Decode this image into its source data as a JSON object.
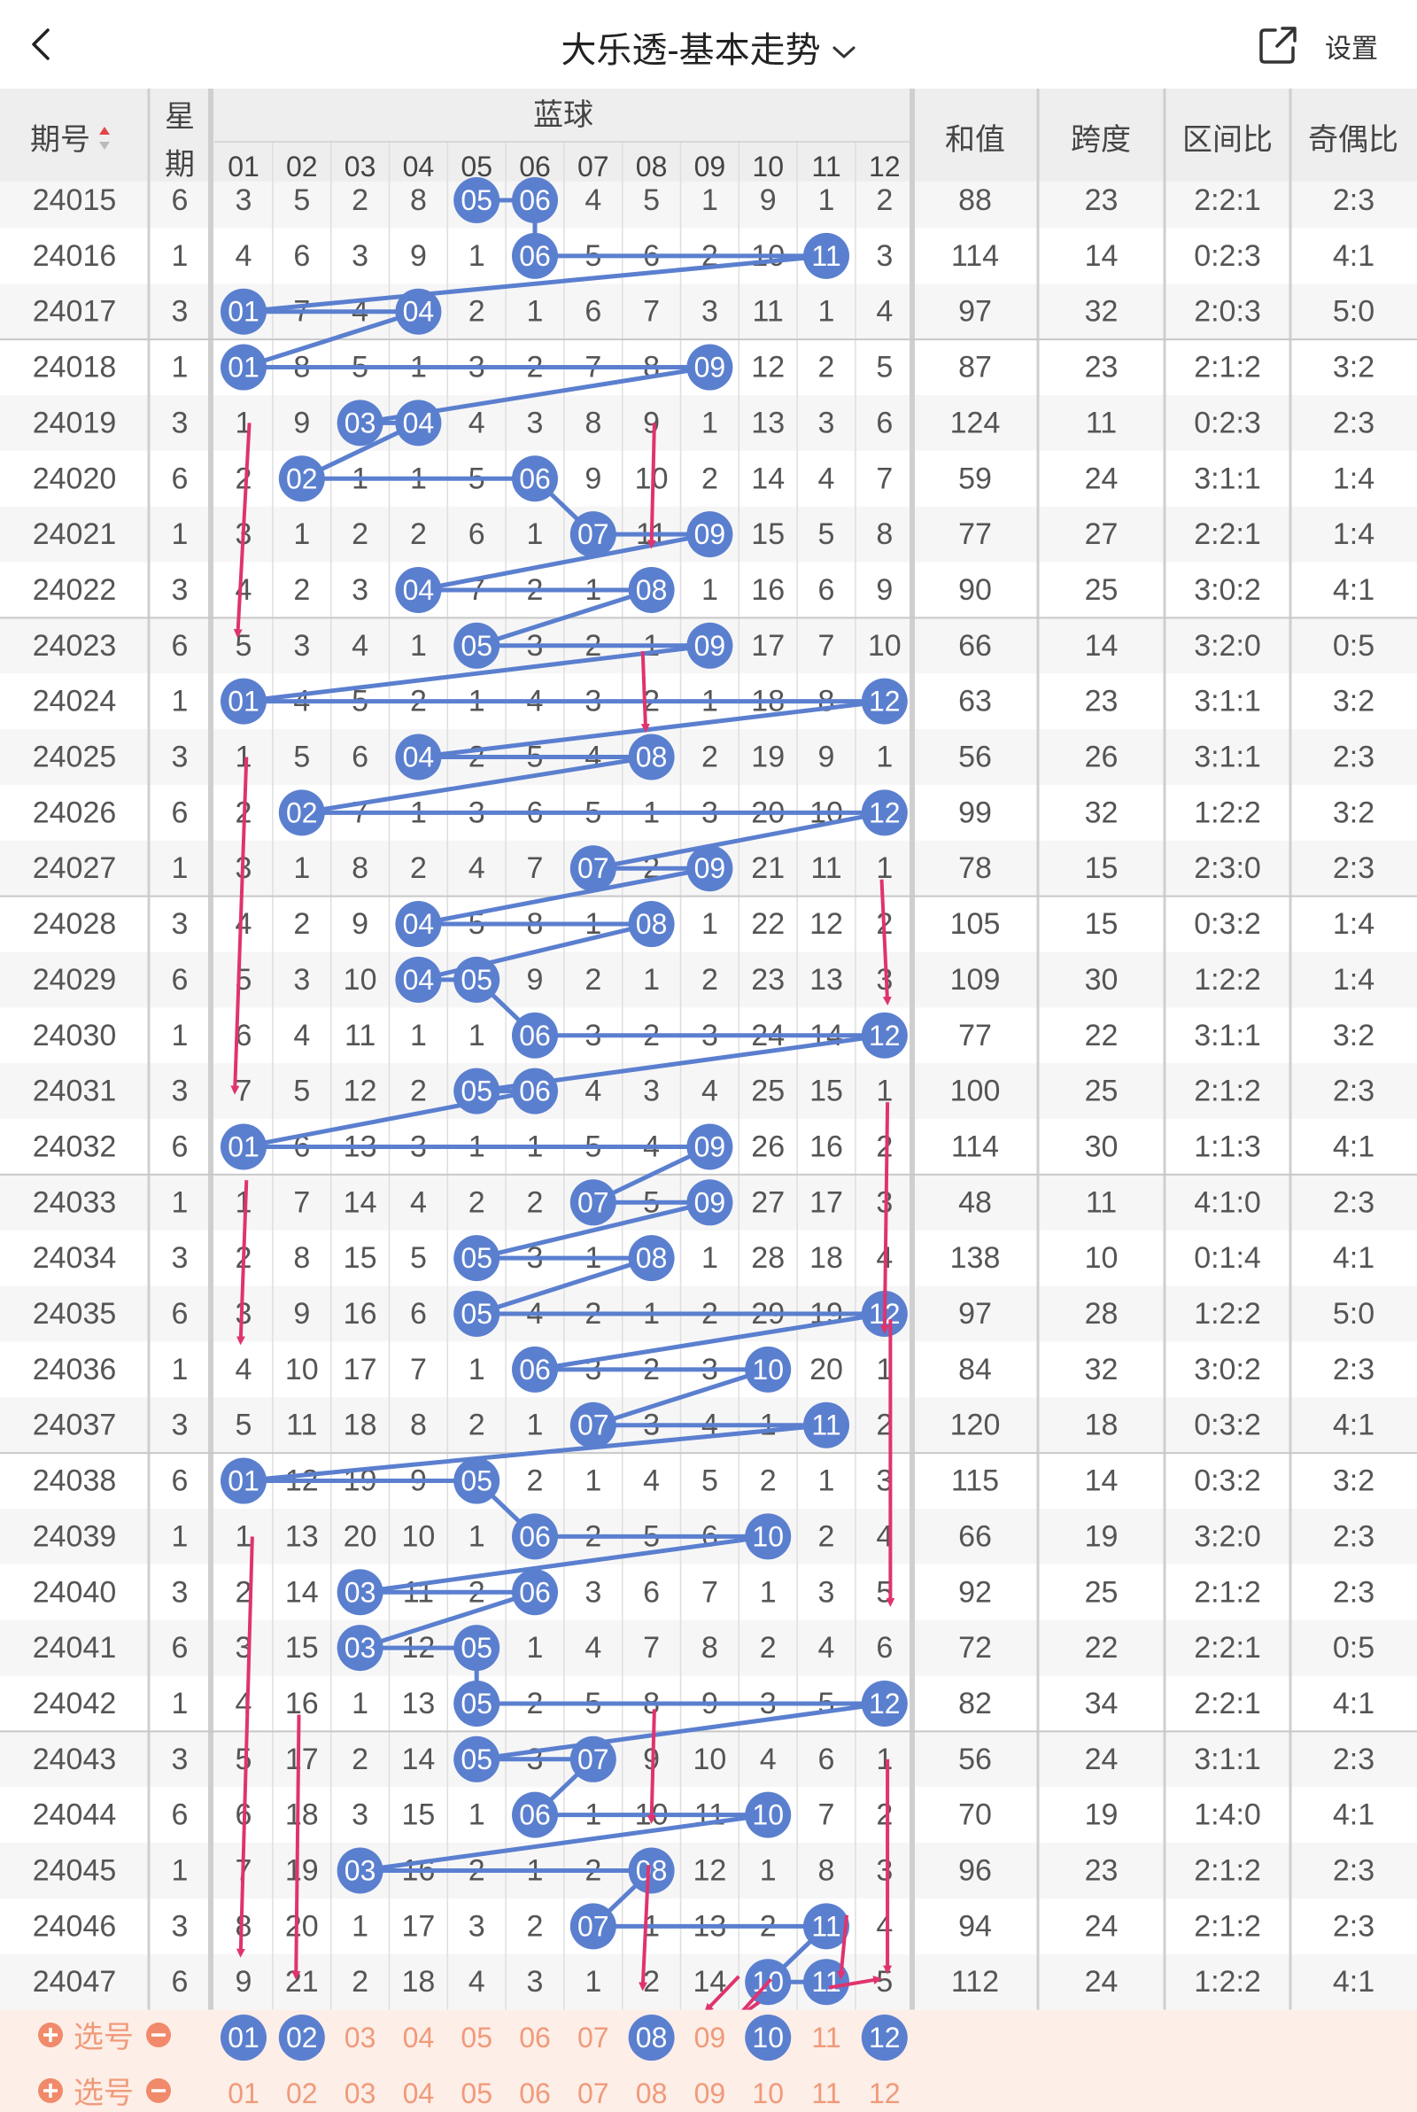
{
  "header": {
    "back_icon": "chevron-left-icon",
    "title": "大乐透-基本走势",
    "dropdown_icon": "chevron-down-icon",
    "share_icon": "share-icon",
    "settings_label": "设置"
  },
  "table_header": {
    "issue": "期号",
    "weekday_top": "星",
    "weekday_bottom": "期",
    "blue_group": "蓝球",
    "sum": "和值",
    "span": "跨度",
    "zone_ratio": "区间比",
    "odd_even": "奇偶比",
    "ball_labels": [
      "01",
      "02",
      "03",
      "04",
      "05",
      "06",
      "07",
      "08",
      "09",
      "10",
      "11",
      "12"
    ]
  },
  "rows": [
    {
      "issue": "24015",
      "wd": "6",
      "cells": [
        3,
        5,
        2,
        8,
        "05",
        "06",
        4,
        5,
        1,
        9,
        1,
        2
      ],
      "sum": "88",
      "span": "23",
      "zone": "2:2:1",
      "oe": "2:3"
    },
    {
      "issue": "24016",
      "wd": "1",
      "cells": [
        4,
        6,
        3,
        9,
        1,
        "06",
        5,
        6,
        2,
        10,
        "11",
        3
      ],
      "sum": "114",
      "span": "14",
      "zone": "0:2:3",
      "oe": "4:1"
    },
    {
      "issue": "24017",
      "wd": "3",
      "cells": [
        "01",
        7,
        4,
        "04",
        2,
        1,
        6,
        7,
        3,
        11,
        1,
        4
      ],
      "sum": "97",
      "span": "32",
      "zone": "2:0:3",
      "oe": "5:0"
    },
    {
      "issue": "24018",
      "wd": "1",
      "cells": [
        "01",
        8,
        5,
        1,
        3,
        2,
        7,
        8,
        "09",
        12,
        2,
        5
      ],
      "sum": "87",
      "span": "23",
      "zone": "2:1:2",
      "oe": "3:2"
    },
    {
      "issue": "24019",
      "wd": "3",
      "cells": [
        1,
        9,
        "03",
        "04",
        4,
        3,
        8,
        9,
        1,
        13,
        3,
        6
      ],
      "sum": "124",
      "span": "11",
      "zone": "0:2:3",
      "oe": "2:3"
    },
    {
      "issue": "24020",
      "wd": "6",
      "cells": [
        2,
        "02",
        1,
        1,
        5,
        "06",
        9,
        10,
        2,
        14,
        4,
        7
      ],
      "sum": "59",
      "span": "24",
      "zone": "3:1:1",
      "oe": "1:4"
    },
    {
      "issue": "24021",
      "wd": "1",
      "cells": [
        3,
        1,
        2,
        2,
        6,
        1,
        "07",
        11,
        "09",
        15,
        5,
        8
      ],
      "sum": "77",
      "span": "27",
      "zone": "2:2:1",
      "oe": "1:4"
    },
    {
      "issue": "24022",
      "wd": "3",
      "cells": [
        4,
        2,
        3,
        "04",
        7,
        2,
        1,
        "08",
        1,
        16,
        6,
        9
      ],
      "sum": "90",
      "span": "25",
      "zone": "3:0:2",
      "oe": "4:1"
    },
    {
      "issue": "24023",
      "wd": "6",
      "cells": [
        5,
        3,
        4,
        1,
        "05",
        3,
        2,
        1,
        "09",
        17,
        7,
        10
      ],
      "sum": "66",
      "span": "14",
      "zone": "3:2:0",
      "oe": "0:5"
    },
    {
      "issue": "24024",
      "wd": "1",
      "cells": [
        "01",
        4,
        5,
        2,
        1,
        4,
        3,
        2,
        1,
        18,
        8,
        "12"
      ],
      "sum": "63",
      "span": "23",
      "zone": "3:1:1",
      "oe": "3:2"
    },
    {
      "issue": "24025",
      "wd": "3",
      "cells": [
        1,
        5,
        6,
        "04",
        2,
        5,
        4,
        "08",
        2,
        19,
        9,
        1
      ],
      "sum": "56",
      "span": "26",
      "zone": "3:1:1",
      "oe": "2:3"
    },
    {
      "issue": "24026",
      "wd": "6",
      "cells": [
        2,
        "02",
        7,
        1,
        3,
        6,
        5,
        1,
        3,
        20,
        10,
        "12"
      ],
      "sum": "99",
      "span": "32",
      "zone": "1:2:2",
      "oe": "3:2"
    },
    {
      "issue": "24027",
      "wd": "1",
      "cells": [
        3,
        1,
        8,
        2,
        4,
        7,
        "07",
        2,
        "09",
        21,
        11,
        1
      ],
      "sum": "78",
      "span": "15",
      "zone": "2:3:0",
      "oe": "2:3"
    },
    {
      "issue": "24028",
      "wd": "3",
      "cells": [
        4,
        2,
        9,
        "04",
        5,
        8,
        1,
        "08",
        1,
        22,
        12,
        2
      ],
      "sum": "105",
      "span": "15",
      "zone": "0:3:2",
      "oe": "1:4"
    },
    {
      "issue": "24029",
      "wd": "6",
      "cells": [
        5,
        3,
        10,
        "04",
        "05",
        9,
        2,
        1,
        2,
        23,
        13,
        3
      ],
      "sum": "109",
      "span": "30",
      "zone": "1:2:2",
      "oe": "1:4"
    },
    {
      "issue": "24030",
      "wd": "1",
      "cells": [
        6,
        4,
        11,
        1,
        1,
        "06",
        3,
        2,
        3,
        24,
        14,
        "12"
      ],
      "sum": "77",
      "span": "22",
      "zone": "3:1:1",
      "oe": "3:2"
    },
    {
      "issue": "24031",
      "wd": "3",
      "cells": [
        7,
        5,
        12,
        2,
        "05",
        "06",
        4,
        3,
        4,
        25,
        15,
        1
      ],
      "sum": "100",
      "span": "25",
      "zone": "2:1:2",
      "oe": "2:3"
    },
    {
      "issue": "24032",
      "wd": "6",
      "cells": [
        "01",
        6,
        13,
        3,
        1,
        1,
        5,
        4,
        "09",
        26,
        16,
        2
      ],
      "sum": "114",
      "span": "30",
      "zone": "1:1:3",
      "oe": "4:1"
    },
    {
      "issue": "24033",
      "wd": "1",
      "cells": [
        1,
        7,
        14,
        4,
        2,
        2,
        "07",
        5,
        "09",
        27,
        17,
        3
      ],
      "sum": "48",
      "span": "11",
      "zone": "4:1:0",
      "oe": "2:3"
    },
    {
      "issue": "24034",
      "wd": "3",
      "cells": [
        2,
        8,
        15,
        5,
        "05",
        3,
        1,
        "08",
        1,
        28,
        18,
        4
      ],
      "sum": "138",
      "span": "10",
      "zone": "0:1:4",
      "oe": "4:1"
    },
    {
      "issue": "24035",
      "wd": "6",
      "cells": [
        3,
        9,
        16,
        6,
        "05",
        4,
        2,
        1,
        2,
        29,
        19,
        "12"
      ],
      "sum": "97",
      "span": "28",
      "zone": "1:2:2",
      "oe": "5:0"
    },
    {
      "issue": "24036",
      "wd": "1",
      "cells": [
        4,
        10,
        17,
        7,
        1,
        "06",
        3,
        2,
        3,
        "10",
        20,
        1
      ],
      "sum": "84",
      "span": "32",
      "zone": "3:0:2",
      "oe": "2:3"
    },
    {
      "issue": "24037",
      "wd": "3",
      "cells": [
        5,
        11,
        18,
        8,
        2,
        1,
        "07",
        3,
        4,
        1,
        "11",
        2
      ],
      "sum": "120",
      "span": "18",
      "zone": "0:3:2",
      "oe": "4:1"
    },
    {
      "issue": "24038",
      "wd": "6",
      "cells": [
        "01",
        12,
        19,
        9,
        "05",
        2,
        1,
        4,
        5,
        2,
        1,
        3
      ],
      "sum": "115",
      "span": "14",
      "zone": "0:3:2",
      "oe": "3:2"
    },
    {
      "issue": "24039",
      "wd": "1",
      "cells": [
        1,
        13,
        20,
        10,
        1,
        "06",
        2,
        5,
        6,
        "10",
        2,
        4
      ],
      "sum": "66",
      "span": "19",
      "zone": "3:2:0",
      "oe": "2:3"
    },
    {
      "issue": "24040",
      "wd": "3",
      "cells": [
        2,
        14,
        "03",
        11,
        2,
        "06",
        3,
        6,
        7,
        1,
        3,
        5
      ],
      "sum": "92",
      "span": "25",
      "zone": "2:1:2",
      "oe": "2:3"
    },
    {
      "issue": "24041",
      "wd": "6",
      "cells": [
        3,
        15,
        "03",
        12,
        "05",
        1,
        4,
        7,
        8,
        2,
        4,
        6
      ],
      "sum": "72",
      "span": "22",
      "zone": "2:2:1",
      "oe": "0:5"
    },
    {
      "issue": "24042",
      "wd": "1",
      "cells": [
        4,
        16,
        1,
        13,
        "05",
        2,
        5,
        8,
        9,
        3,
        5,
        "12"
      ],
      "sum": "82",
      "span": "34",
      "zone": "2:2:1",
      "oe": "4:1"
    },
    {
      "issue": "24043",
      "wd": "3",
      "cells": [
        5,
        17,
        2,
        14,
        "05",
        3,
        "07",
        9,
        10,
        4,
        6,
        1
      ],
      "sum": "56",
      "span": "24",
      "zone": "3:1:1",
      "oe": "2:3"
    },
    {
      "issue": "24044",
      "wd": "6",
      "cells": [
        6,
        18,
        3,
        15,
        1,
        "06",
        1,
        10,
        11,
        "10",
        7,
        2
      ],
      "sum": "70",
      "span": "19",
      "zone": "1:4:0",
      "oe": "4:1"
    },
    {
      "issue": "24045",
      "wd": "1",
      "cells": [
        7,
        19,
        "03",
        16,
        2,
        1,
        2,
        "08",
        12,
        1,
        8,
        3
      ],
      "sum": "96",
      "span": "23",
      "zone": "2:1:2",
      "oe": "2:3"
    },
    {
      "issue": "24046",
      "wd": "3",
      "cells": [
        8,
        20,
        1,
        17,
        3,
        2,
        "07",
        1,
        13,
        2,
        "11",
        4
      ],
      "sum": "94",
      "span": "24",
      "zone": "2:1:2",
      "oe": "2:3"
    },
    {
      "issue": "24047",
      "wd": "6",
      "cells": [
        9,
        21,
        2,
        18,
        4,
        3,
        1,
        2,
        14,
        "10",
        "11",
        5
      ],
      "sum": "112",
      "span": "24",
      "zone": "1:2:2",
      "oe": "4:1"
    }
  ],
  "select_rows": [
    {
      "label": "选号",
      "plus_icon": "plus-circle-icon",
      "minus_icon": "minus-circle-icon",
      "balls": [
        "01",
        "02",
        "03",
        "04",
        "05",
        "06",
        "07",
        "08",
        "09",
        "10",
        "11",
        "12"
      ],
      "selected": [
        true,
        true,
        false,
        false,
        false,
        false,
        false,
        true,
        false,
        true,
        false,
        true
      ]
    },
    {
      "label": "选号",
      "plus_icon": "plus-circle-icon",
      "minus_icon": "minus-circle-icon",
      "balls": [
        "01",
        "02",
        "03",
        "04",
        "05",
        "06",
        "07",
        "08",
        "09",
        "10",
        "11",
        "12"
      ],
      "selected": [
        false,
        false,
        false,
        false,
        false,
        false,
        false,
        false,
        false,
        false,
        false,
        false
      ]
    }
  ],
  "colors": {
    "ball": "#5b7fcf",
    "line": "#5b7fcf",
    "arrow": "#e0336e",
    "header_bg": "#eeeeee",
    "alt_row": "#f6f6f6",
    "select_bg": "#fdeee8",
    "select_text": "#f09a7a",
    "sort_up": "#e04848"
  }
}
